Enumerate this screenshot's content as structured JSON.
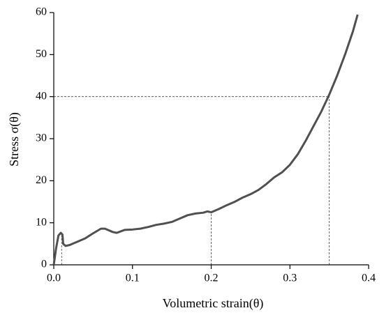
{
  "chart_data": {
    "type": "line",
    "x_label": "Volumetric strain(θ)",
    "y_label": "Stress σ(θ)",
    "x": [
      0,
      0.003,
      0.006,
      0.009,
      0.011,
      0.012,
      0.015,
      0.02,
      0.03,
      0.04,
      0.05,
      0.06,
      0.065,
      0.075,
      0.08,
      0.09,
      0.1,
      0.11,
      0.12,
      0.13,
      0.14,
      0.15,
      0.16,
      0.17,
      0.18,
      0.19,
      0.195,
      0.2,
      0.21,
      0.22,
      0.23,
      0.24,
      0.25,
      0.26,
      0.27,
      0.28,
      0.29,
      0.3,
      0.31,
      0.32,
      0.33,
      0.34,
      0.35,
      0.36,
      0.37,
      0.38,
      0.386
    ],
    "series": [
      {
        "color": "#505050",
        "values": [
          0,
          4,
          7,
          7.6,
          7.2,
          5,
          4.5,
          4.7,
          5.5,
          6.3,
          7.5,
          8.6,
          8.6,
          7.8,
          7.6,
          8.3,
          8.4,
          8.6,
          9,
          9.5,
          9.8,
          10.2,
          11,
          11.8,
          12.2,
          12.4,
          12.7,
          12.5,
          13.3,
          14.2,
          15,
          16,
          16.8,
          17.8,
          19.2,
          20.8,
          22,
          23.8,
          26.3,
          29.5,
          33,
          36.5,
          40.5,
          45,
          50,
          55.5,
          59.5
        ]
      }
    ],
    "guides": [
      {
        "x": 0.01,
        "y": 7.5,
        "horizontal": false
      },
      {
        "x": 0.2,
        "y": 12.6,
        "horizontal": false
      },
      {
        "x": 0.35,
        "y": 40,
        "horizontal": true
      }
    ],
    "xlim": [
      0,
      0.4
    ],
    "xticks": [
      {
        "value": 0,
        "label": "0.0"
      },
      0.1,
      0.2,
      0.3,
      0.4
    ],
    "ylim": [
      0,
      60
    ],
    "yticks": [
      0,
      10,
      20,
      30,
      40,
      50,
      60
    ]
  }
}
